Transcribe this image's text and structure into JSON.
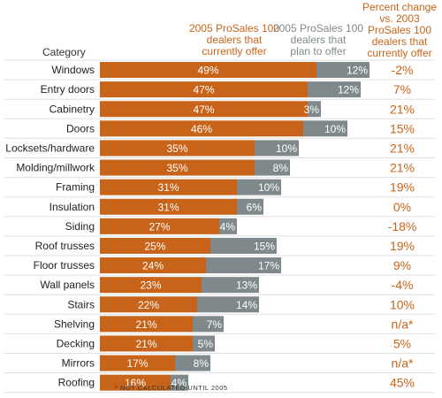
{
  "chart_data": {
    "type": "bar",
    "stacked": true,
    "orientation": "horizontal",
    "category_header": "Category",
    "categories": [
      "Windows",
      "Entry doors",
      "Cabinetry",
      "Doors",
      "Locksets/hardware",
      "Molding/millwork",
      "Framing",
      "Insulation",
      "Siding",
      "Roof trusses",
      "Floor trusses",
      "Wall panels",
      "Stairs",
      "Shelving",
      "Decking",
      "Mirrors",
      "Roofing"
    ],
    "series": [
      {
        "name": "2005 ProSales 100 dealers that currently offer",
        "values": [
          49,
          47,
          47,
          46,
          35,
          35,
          31,
          31,
          27,
          25,
          24,
          23,
          22,
          21,
          21,
          17,
          16
        ],
        "labels": [
          "49%",
          "47%",
          "47%",
          "46%",
          "35%",
          "35%",
          "31%",
          "31%",
          "27%",
          "25%",
          "24%",
          "23%",
          "22%",
          "21%",
          "21%",
          "17%",
          "16%"
        ],
        "color": "#c8641a"
      },
      {
        "name": "2005 ProSales 100 dealers that plan to offer",
        "values": [
          12,
          12,
          3,
          10,
          10,
          8,
          10,
          6,
          4,
          15,
          17,
          13,
          14,
          7,
          5,
          8,
          4
        ],
        "labels": [
          "12%",
          "12%",
          "3%",
          "10%",
          "10%",
          "8%",
          "10%",
          "6%",
          "4%",
          "15%",
          "17%",
          "13%",
          "14%",
          "7%",
          "5%",
          "8%",
          "4%"
        ],
        "color": "#7f898b"
      }
    ],
    "percent_change_header": "Percent change vs. 2003 ProSales 100 dealers that currently offer",
    "percent_change": [
      "-2%",
      "7%",
      "21%",
      "15%",
      "21%",
      "21%",
      "19%",
      "0%",
      "-18%",
      "19%",
      "9%",
      "-4%",
      "10%",
      "n/a*",
      "5%",
      "n/a*",
      "45%"
    ],
    "footnote": "* NOT CALCULATED UNTIL 2005",
    "colors": {
      "orange": "#c8641a",
      "gray": "#7f898b",
      "grid": "#e0e0e0",
      "label": "#222222"
    }
  },
  "headers": {
    "category": "Category",
    "currently_offer": [
      "2005 ProSales 100",
      "dealers that",
      "currently offer"
    ],
    "plan_to_offer": [
      "2005 ProSales 100",
      "dealers that",
      "plan to offer"
    ],
    "percent_change": [
      "Percent change",
      "vs. 2003",
      "ProSales 100",
      "dealers that",
      "currently offer"
    ]
  }
}
